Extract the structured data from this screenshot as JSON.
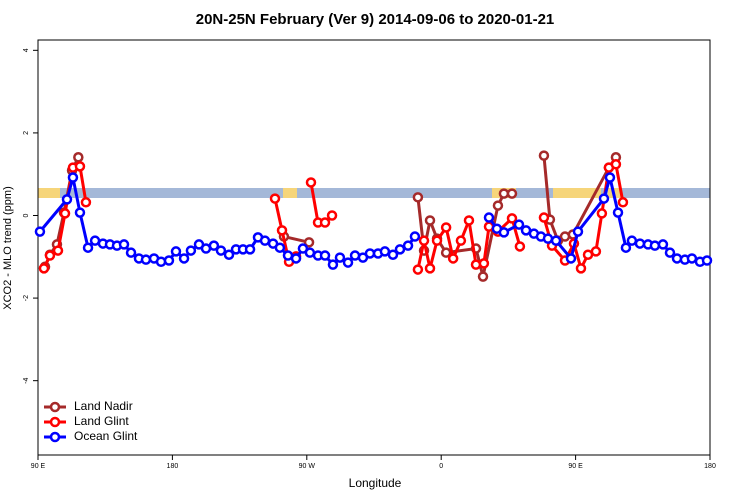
{
  "chart_data": {
    "type": "line",
    "title": "20N-25N February (Ver 9)   2014-09-06 to 2020-01-21",
    "xlabel": "Longitude",
    "ylabel": "XCO2 - MLO trend (ppm)",
    "xlim": [
      90,
      540
    ],
    "xticks": [
      {
        "value": 90,
        "label": "90 E"
      },
      {
        "value": 180,
        "label": "180"
      },
      {
        "value": 270,
        "label": "90 W"
      },
      {
        "value": 360,
        "label": "0"
      },
      {
        "value": 450,
        "label": "90 E"
      },
      {
        "value": 540,
        "label": "180"
      }
    ],
    "ylim": [
      -5.8,
      4.25
    ],
    "yticks": [
      -4,
      -2,
      0,
      2,
      4
    ],
    "legend": "bottom-left",
    "series": [
      {
        "name": "Land Nadir",
        "color": "#a52a2a",
        "x": [
          94.7,
          98.0,
          102.7,
          107.4,
          112.8,
          117.0,
          null,
          254.7,
          271.5,
          null,
          344.4,
          348.5,
          352.5,
          357.2,
          363.3,
          383.3,
          388.0,
          398.0,
          402.0,
          407.4,
          null,
          428.8,
          432.8,
          438.2,
          442.9,
          448.2,
          472.3,
          477.0
        ],
        "values": [
          -1.24,
          -0.95,
          -0.7,
          0.07,
          1.09,
          1.41,
          null,
          -0.51,
          -0.65,
          null,
          0.44,
          -0.85,
          -0.12,
          -0.56,
          -0.9,
          -0.8,
          -1.48,
          0.24,
          0.53,
          0.53,
          null,
          1.45,
          -0.1,
          -0.61,
          -0.51,
          -0.46,
          1.16,
          1.41
        ]
      },
      {
        "name": "Land Glint",
        "color": "#ff0000",
        "x": [
          94.0,
          98.0,
          103.4,
          108.1,
          113.4,
          118.1,
          122.1,
          null,
          248.7,
          253.4,
          258.1,
          262.8,
          null,
          272.8,
          277.5,
          282.2,
          286.9,
          null,
          344.4,
          348.5,
          352.5,
          357.2,
          363.3,
          368.0,
          373.2,
          378.6,
          383.3,
          388.6,
          392.0,
          398.0,
          407.4,
          412.7,
          null,
          428.8,
          434.2,
          442.9,
          448.9,
          453.6,
          458.3,
          463.6,
          467.6,
          472.3,
          477.0,
          481.7
        ],
        "values": [
          -1.28,
          -0.97,
          -0.85,
          0.05,
          1.16,
          1.19,
          0.32,
          null,
          0.41,
          -0.36,
          -1.12,
          -0.99,
          null,
          0.8,
          -0.17,
          -0.17,
          0.0,
          null,
          -1.31,
          -0.61,
          -1.28,
          -0.61,
          -0.29,
          -1.04,
          -0.61,
          -0.12,
          -1.19,
          -1.16,
          -0.27,
          -0.39,
          -0.07,
          -0.75,
          null,
          -0.05,
          -0.73,
          -1.09,
          -0.68,
          -1.28,
          -0.95,
          -0.87,
          0.05,
          1.16,
          1.24,
          0.32
        ]
      },
      {
        "name": "Ocean Glint",
        "color": "#0000ff",
        "x": [
          91.3,
          109.4,
          113.4,
          118.1,
          123.5,
          128.2,
          133.5,
          138.2,
          142.9,
          147.6,
          152.3,
          157.6,
          162.3,
          167.7,
          172.4,
          177.7,
          182.4,
          187.8,
          192.4,
          197.8,
          202.5,
          207.8,
          212.5,
          217.9,
          222.6,
          227.3,
          232.0,
          237.3,
          242.0,
          247.4,
          252.0,
          257.4,
          262.8,
          267.4,
          272.1,
          277.5,
          282.2,
          287.5,
          292.2,
          297.6,
          302.3,
          307.6,
          312.3,
          317.7,
          322.3,
          327.7,
          332.4,
          337.8,
          342.4,
          null,
          392.0,
          397.3,
          402.0,
          412.1,
          416.8,
          422.1,
          426.8,
          431.5,
          436.9,
          446.9,
          451.6,
          469.0,
          473.0,
          478.4,
          483.7,
          487.7,
          493.1,
          498.5,
          503.1,
          508.5,
          513.2,
          517.9,
          523.2,
          527.9,
          533.3,
          538.0
        ],
        "values": [
          -0.39,
          0.39,
          0.92,
          0.07,
          -0.78,
          -0.61,
          -0.68,
          -0.7,
          -0.73,
          -0.7,
          -0.9,
          -1.04,
          -1.07,
          -1.04,
          -1.12,
          -1.09,
          -0.87,
          -1.04,
          -0.85,
          -0.7,
          -0.8,
          -0.73,
          -0.85,
          -0.95,
          -0.82,
          -0.82,
          -0.82,
          -0.53,
          -0.61,
          -0.68,
          -0.78,
          -0.97,
          -1.04,
          -0.8,
          -0.9,
          -0.97,
          -0.97,
          -1.19,
          -1.02,
          -1.14,
          -0.97,
          -1.02,
          -0.92,
          -0.92,
          -0.87,
          -0.95,
          -0.82,
          -0.73,
          -0.51,
          null,
          -0.05,
          -0.32,
          -0.41,
          -0.22,
          -0.36,
          -0.44,
          -0.51,
          -0.56,
          -0.61,
          -1.04,
          -0.39,
          0.41,
          0.92,
          0.07,
          -0.78,
          -0.61,
          -0.68,
          -0.7,
          -0.73,
          -0.7,
          -0.9,
          -1.04,
          -1.07,
          -1.04,
          -1.12,
          -1.09
        ]
      }
    ]
  }
}
